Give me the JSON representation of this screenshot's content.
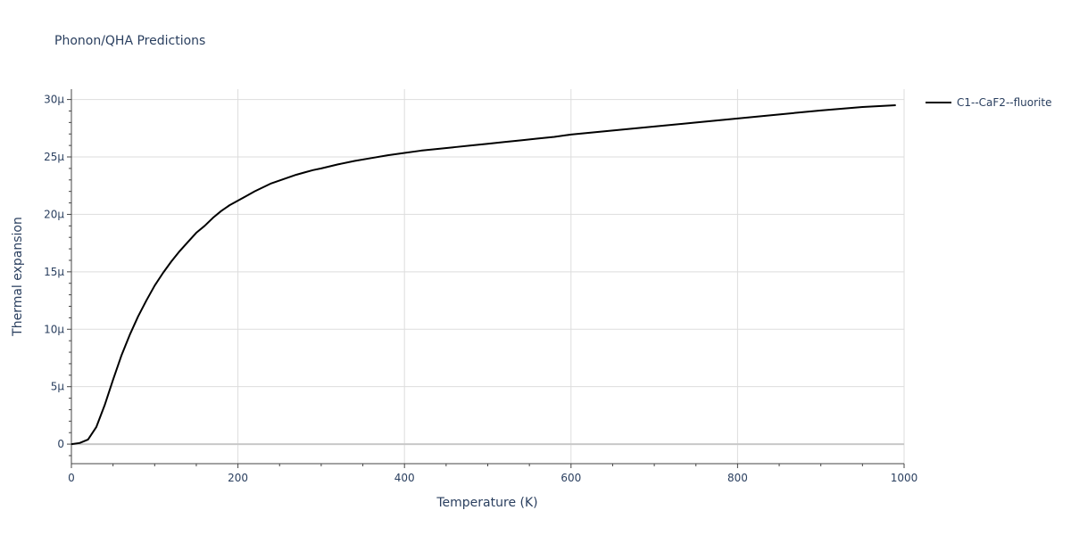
{
  "chart_data": {
    "type": "line",
    "title": "Phonon/QHA Predictions",
    "xlabel": "Temperature (K)",
    "ylabel": "Thermal expansion",
    "xlim": [
      0,
      1000
    ],
    "ylim": [
      -1.7e-06,
      3.09e-05
    ],
    "x_ticks": [
      0,
      200,
      400,
      600,
      800,
      1000
    ],
    "x_tick_labels": [
      "0",
      "200",
      "400",
      "600",
      "800",
      "1000"
    ],
    "y_ticks": [
      0,
      5e-06,
      1e-05,
      1.5e-05,
      2e-05,
      2.5e-05,
      3e-05
    ],
    "y_tick_labels": [
      "0",
      "5μ",
      "10μ",
      "15μ",
      "20μ",
      "25μ",
      "30μ"
    ],
    "grid": true,
    "legend_position": "top-right",
    "series": [
      {
        "name": "C1--CaF2--fluorite",
        "color": "#000000",
        "x": [
          0,
          10,
          20,
          30,
          40,
          50,
          60,
          70,
          80,
          90,
          100,
          110,
          120,
          130,
          140,
          150,
          160,
          170,
          180,
          190,
          200,
          210,
          220,
          230,
          240,
          250,
          260,
          270,
          280,
          290,
          300,
          320,
          340,
          360,
          380,
          400,
          420,
          440,
          460,
          480,
          500,
          520,
          540,
          560,
          580,
          600,
          650,
          700,
          750,
          800,
          850,
          900,
          950,
          990
        ],
        "y": [
          0,
          1e-07,
          4e-07,
          1.5e-06,
          3.4e-06,
          5.6e-06,
          7.7e-06,
          9.5e-06,
          1.11e-05,
          1.25e-05,
          1.38e-05,
          1.49e-05,
          1.59e-05,
          1.68e-05,
          1.76e-05,
          1.84e-05,
          1.9e-05,
          1.97e-05,
          2.03e-05,
          2.08e-05,
          2.12e-05,
          2.16e-05,
          2.2e-05,
          2.235e-05,
          2.27e-05,
          2.295e-05,
          2.32e-05,
          2.345e-05,
          2.365e-05,
          2.385e-05,
          2.4e-05,
          2.435e-05,
          2.465e-05,
          2.49e-05,
          2.515e-05,
          2.535e-05,
          2.555e-05,
          2.57e-05,
          2.585e-05,
          2.6e-05,
          2.615e-05,
          2.63e-05,
          2.645e-05,
          2.66e-05,
          2.675e-05,
          2.695e-05,
          2.73e-05,
          2.765e-05,
          2.8e-05,
          2.835e-05,
          2.87e-05,
          2.905e-05,
          2.935e-05,
          2.95e-05
        ]
      }
    ]
  }
}
